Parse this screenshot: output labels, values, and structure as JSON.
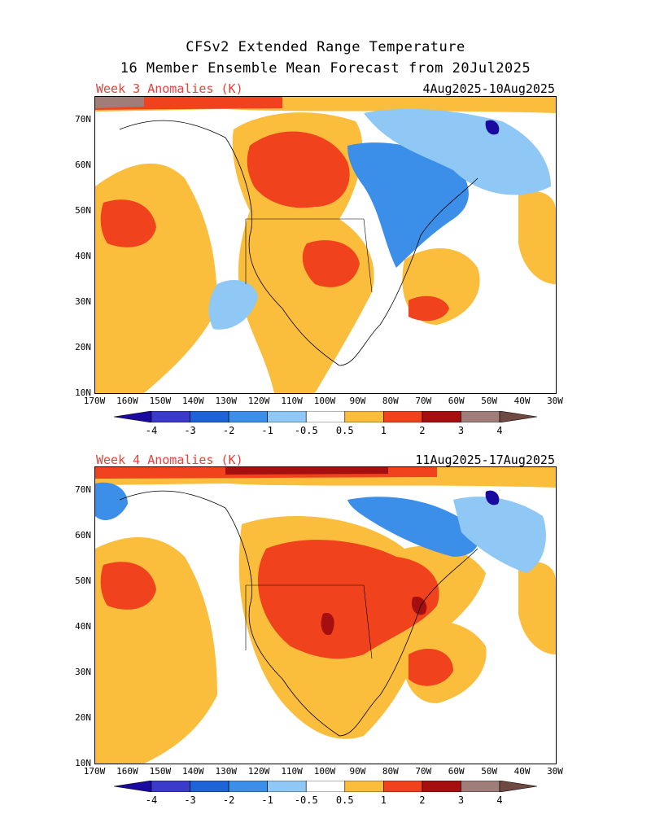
{
  "title_line1": "CFSv2 Extended Range Temperature",
  "title_line2": "16 Member Ensemble Mean Forecast from 20Jul2025",
  "panels": [
    {
      "label": "Week 3 Anomalies (K)",
      "dates": "4Aug2025-10Aug2025"
    },
    {
      "label": "Week 4 Anomalies (K)",
      "dates": "11Aug2025-17Aug2025"
    }
  ],
  "lat_labels": [
    "70N",
    "60N",
    "50N",
    "40N",
    "30N",
    "20N",
    "10N"
  ],
  "lon_labels": [
    "170W",
    "160W",
    "150W",
    "140W",
    "130W",
    "120W",
    "110W",
    "100W",
    "90W",
    "80W",
    "70W",
    "60W",
    "50W",
    "40W",
    "30W"
  ],
  "colorbar": {
    "ticks": [
      "-4",
      "-3",
      "-2",
      "-1",
      "-0.5",
      "0.5",
      "1",
      "2",
      "3",
      "4"
    ],
    "colors": [
      "#1a0aa0",
      "#3a3acb",
      "#1f63d8",
      "#3c8fe8",
      "#8fc7f5",
      "#ffffff",
      "#fbbd3c",
      "#f0421c",
      "#a50f0f",
      "#a07d78",
      "#6e4a42"
    ]
  }
}
